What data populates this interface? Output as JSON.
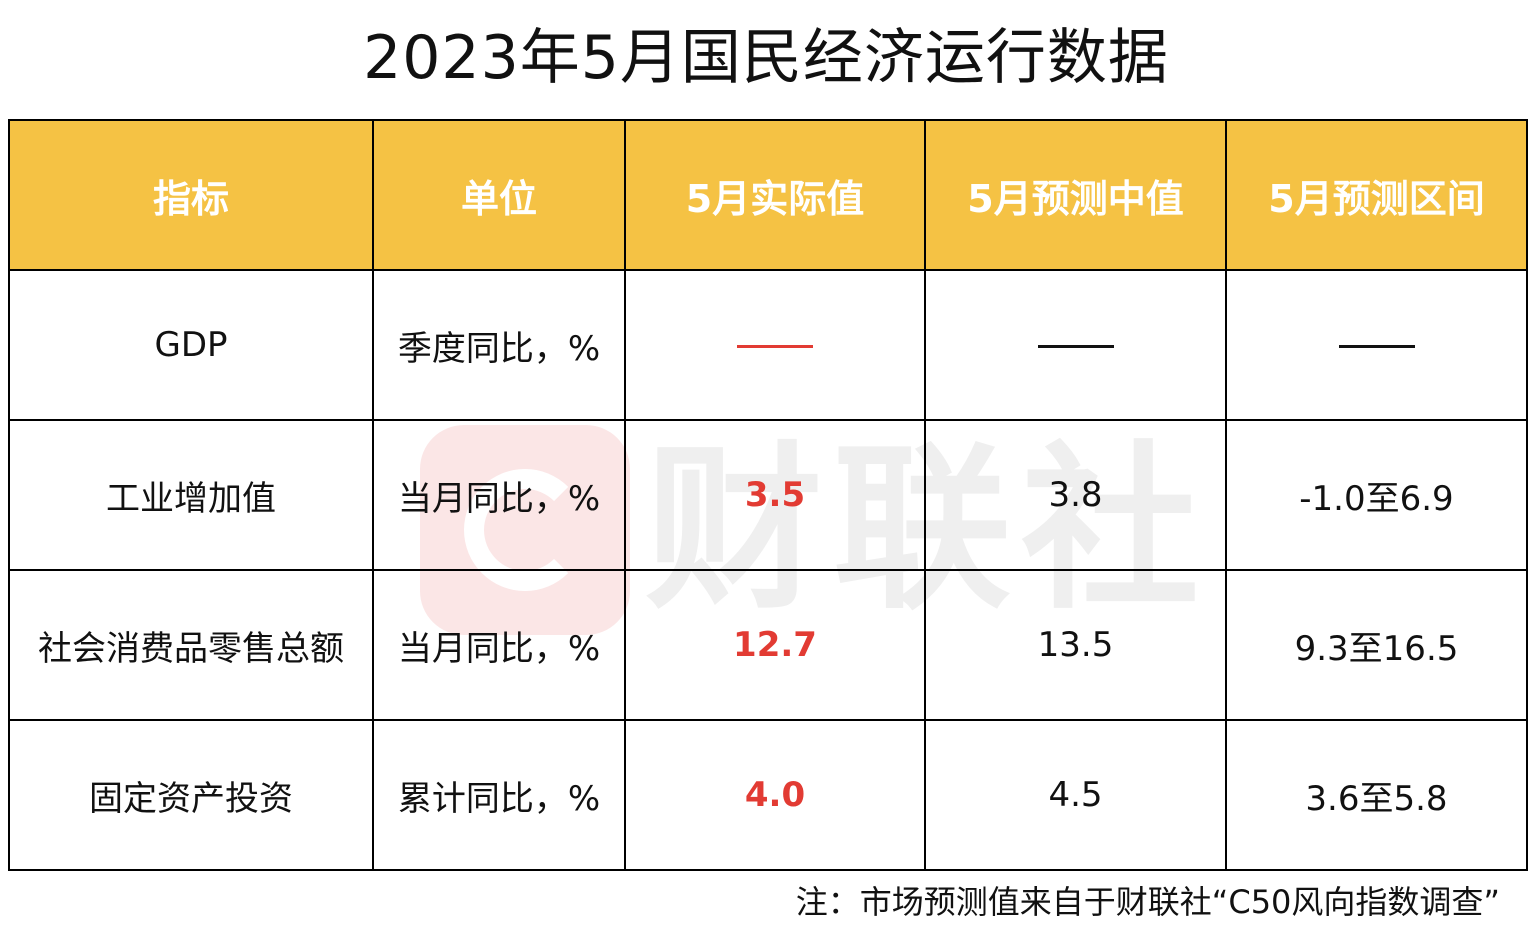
{
  "title": "2023年5月国民经济运行数据",
  "watermark": {
    "text": "财联社",
    "icon": "cls-logo-icon"
  },
  "table": {
    "headers": [
      "指标",
      "单位",
      "5月实际值",
      "5月预测中值",
      "5月预测区间"
    ],
    "rows": [
      {
        "indicator": "GDP",
        "unit": "季度同比，%",
        "actual": "——",
        "forecast_median": "——",
        "forecast_range": "——"
      },
      {
        "indicator": "工业增加值",
        "unit": "当月同比，%",
        "actual": "3.5",
        "forecast_median": "3.8",
        "forecast_range": "-1.0至6.9"
      },
      {
        "indicator": "社会消费品零售总额",
        "unit": "当月同比，%",
        "actual": "12.7",
        "forecast_median": "13.5",
        "forecast_range": "9.3至16.5"
      },
      {
        "indicator": "固定资产投资",
        "unit": "累计同比，%",
        "actual": "4.0",
        "forecast_median": "4.5",
        "forecast_range": "3.6至5.8"
      }
    ]
  },
  "note": "注：市场预测值来自于财联社“C50风向指数调查”",
  "colors": {
    "header_bg": "#f5c244",
    "header_text": "#ffffff",
    "actual_value": "#e23b33",
    "border": "#000000"
  }
}
